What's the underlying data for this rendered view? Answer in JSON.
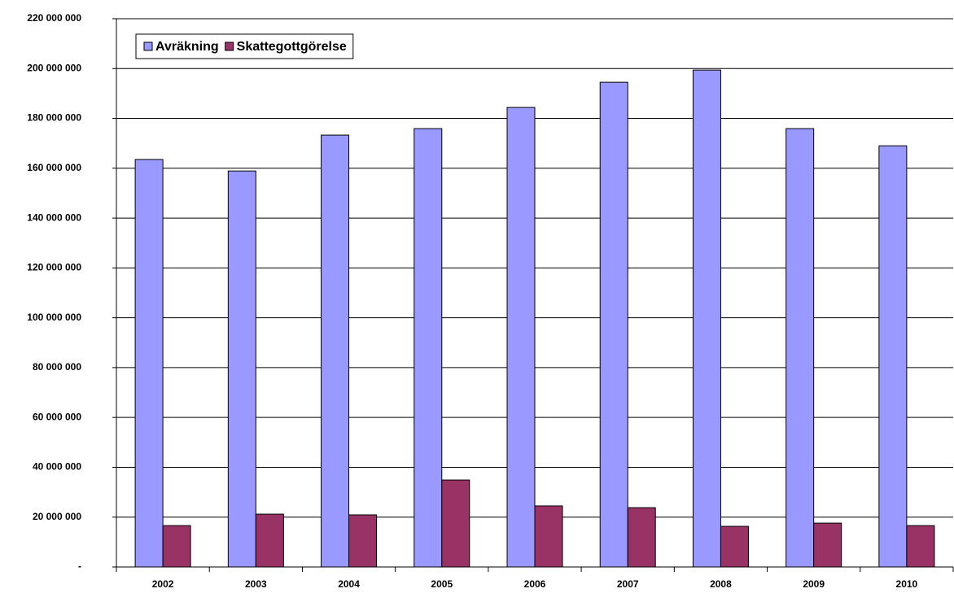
{
  "chart_data": {
    "type": "bar",
    "categories": [
      "2002",
      "2003",
      "2004",
      "2005",
      "2006",
      "2007",
      "2008",
      "2009",
      "2010"
    ],
    "series": [
      {
        "name": "Avräkning",
        "color": "#9999ff",
        "values": [
          163500000,
          158900000,
          173300000,
          175900000,
          184400000,
          194500000,
          199400000,
          175900000,
          169000000
        ]
      },
      {
        "name": "Skattegottgörelse",
        "color": "#993366",
        "values": [
          16600000,
          21200000,
          20900000,
          34900000,
          24500000,
          23800000,
          16300000,
          17600000,
          16600000
        ]
      }
    ],
    "ylim": [
      0,
      220000000
    ],
    "yticks": [
      {
        "value": 0,
        "label": "-"
      },
      {
        "value": 20000000,
        "label": "20 000 000"
      },
      {
        "value": 40000000,
        "label": "40 000 000"
      },
      {
        "value": 60000000,
        "label": "60 000 000"
      },
      {
        "value": 80000000,
        "label": "80 000 000"
      },
      {
        "value": 100000000,
        "label": "100 000 000"
      },
      {
        "value": 120000000,
        "label": "120 000 000"
      },
      {
        "value": 140000000,
        "label": "140 000 000"
      },
      {
        "value": 160000000,
        "label": "160 000 000"
      },
      {
        "value": 180000000,
        "label": "180 000 000"
      },
      {
        "value": 200000000,
        "label": "200 000 000"
      },
      {
        "value": 220000000,
        "label": "220 000 000"
      }
    ],
    "grid": true
  }
}
